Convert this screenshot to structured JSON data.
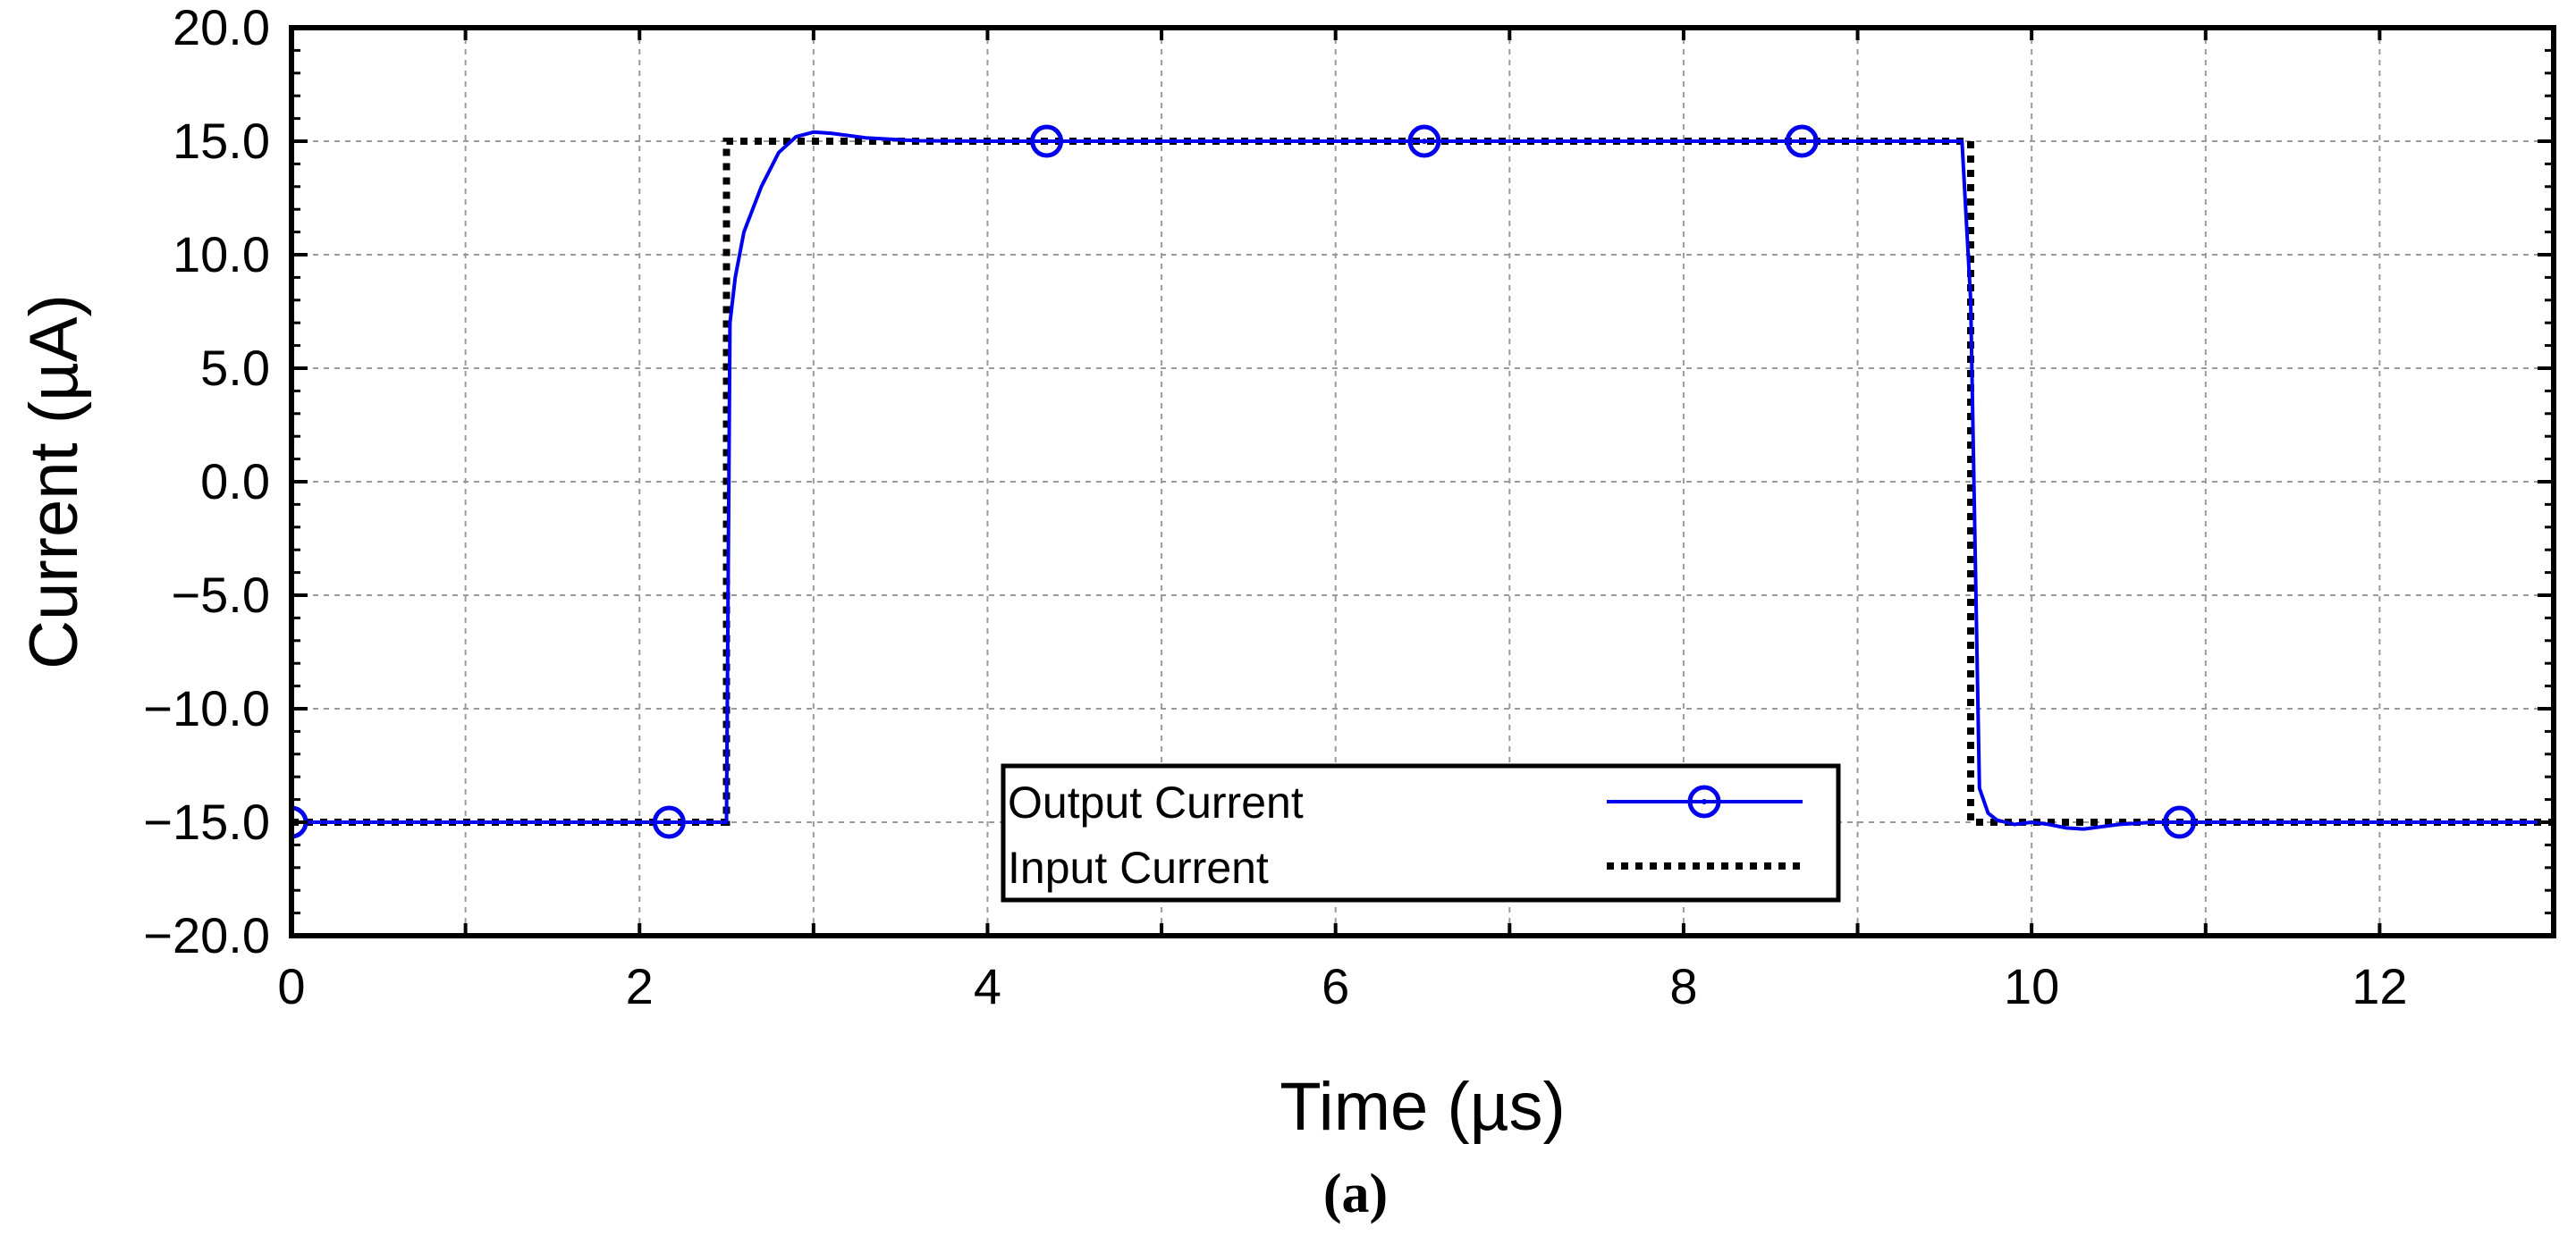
{
  "chart_data": {
    "type": "line",
    "xlabel": "Time (µs)",
    "ylabel": "Current (µA)",
    "xlim": [
      0,
      13
    ],
    "ylim": [
      -20,
      20
    ],
    "x_ticks": [
      0,
      2,
      4,
      6,
      8,
      10,
      12
    ],
    "x_tick_labels": [
      "0",
      "2",
      "4",
      "6",
      "8",
      "10",
      "12"
    ],
    "y_ticks": [
      -20,
      -15,
      -10,
      -5,
      0,
      5,
      10,
      15,
      20
    ],
    "y_tick_labels": [
      "−20.0",
      "−15.0",
      "−10.0",
      "−5.0",
      "0.0",
      "5.0",
      "10.0",
      "15.0",
      "20.0"
    ],
    "grid": true,
    "legend_position": "bottom-center",
    "series": [
      {
        "name": "Output Current",
        "color": "#0000ee",
        "style": "solid",
        "marker": "circle-dot",
        "x": [
          0,
          2.5,
          2.52,
          2.55,
          2.6,
          2.7,
          2.8,
          2.9,
          3.0,
          3.1,
          3.3,
          3.6,
          4.0,
          9.6,
          9.65,
          9.68,
          9.7,
          9.75,
          9.8,
          9.9,
          10.0,
          10.1,
          10.2,
          10.3,
          10.5,
          10.7,
          11.0,
          13.0
        ],
        "y": [
          -15,
          -15,
          7,
          9,
          11,
          13,
          14.5,
          15.2,
          15.4,
          15.35,
          15.15,
          15.02,
          15,
          15,
          8,
          -5,
          -13.5,
          -14.6,
          -14.9,
          -15.1,
          -15.0,
          -15.1,
          -15.25,
          -15.3,
          -15.1,
          -15.0,
          -15.0,
          -15.0
        ],
        "marker_x": [
          0,
          2.17,
          4.34,
          6.51,
          8.68,
          10.85
        ],
        "marker_y": [
          -15,
          -15,
          15,
          15,
          15,
          -15
        ]
      },
      {
        "name": "Input Current",
        "color": "#000000",
        "style": "dotted",
        "x": [
          0,
          2.5,
          2.5,
          9.65,
          9.65,
          13.0
        ],
        "y": [
          -15,
          -15,
          15,
          15,
          -15,
          -15
        ]
      }
    ]
  },
  "caption": "(a)"
}
